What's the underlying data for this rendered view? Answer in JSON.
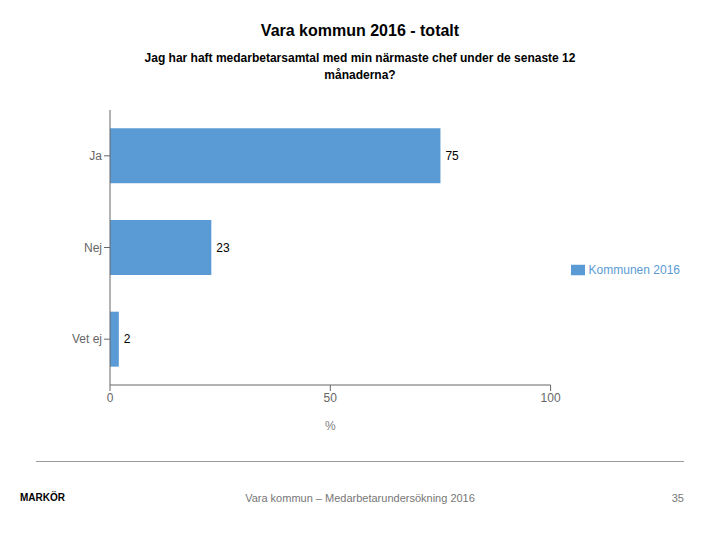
{
  "chart_data": {
    "type": "bar",
    "orientation": "horizontal",
    "title": "Vara kommun 2016 - totalt",
    "subtitle": "Jag har haft medarbetarsamtal med min närmaste chef under de senaste 12\nmånaderna?",
    "categories": [
      "Ja",
      "Nej",
      "Vet ej"
    ],
    "series": [
      {
        "name": "Kommunen 2016",
        "color": "#5b9bd5",
        "values": [
          75,
          23,
          2
        ]
      }
    ],
    "xlabel": "%",
    "xlim": [
      0,
      100
    ],
    "xticks": [
      0,
      50,
      100
    ],
    "grid": false,
    "legend": "right",
    "data_labels": true,
    "annotations": [
      "Vara kommun – Medarbetarundersökning 2016",
      "35",
      "MARKÖR"
    ]
  }
}
